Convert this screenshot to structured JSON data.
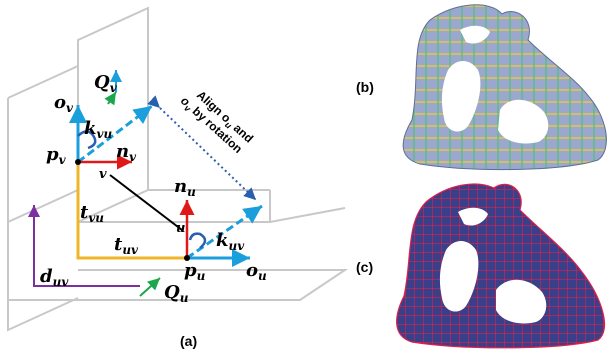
{
  "diagram": {
    "labels": {
      "o_v": "o",
      "o_v_sub": "v",
      "Q_v": "Q",
      "Q_v_sub": "v",
      "k_vu": "k",
      "k_vu_sub": "vu",
      "p_v": "p",
      "p_v_sub": "v",
      "n_v": "n",
      "n_v_sub": "v",
      "v_pt": "v",
      "t_vu": "t",
      "t_vu_sub": "vu",
      "n_u": "n",
      "n_u_sub": "u",
      "u_pt": "u",
      "t_uv": "t",
      "t_uv_sub": "uv",
      "k_uv": "k",
      "k_uv_sub": "uv",
      "p_u": "p",
      "p_u_sub": "u",
      "o_u": "o",
      "o_u_sub": "u",
      "d_uv": "d",
      "d_uv_sub": "uv",
      "Q_u": "Q",
      "Q_u_sub": "u"
    },
    "rotation_text": {
      "line1": "Align o",
      "line1_sub": "u",
      "line1_end": " and",
      "line2": "o",
      "line2_sub": "v",
      "line2_end": " by rotation"
    },
    "captions": {
      "a": "(a)",
      "b": "(b)",
      "c": "(c)"
    },
    "colors": {
      "frame": "#c8c8c8",
      "blue": "#1a9fdc",
      "red": "#e01818",
      "gold": "#f0b429",
      "purple": "#7b2fa0",
      "green": "#1aa64a",
      "black": "#000000",
      "dotted": "#2a5fb0",
      "mesh_b": "#8f9fc9",
      "mesh_c": "#3a3f8a",
      "grid_c": "#e0204a"
    }
  }
}
